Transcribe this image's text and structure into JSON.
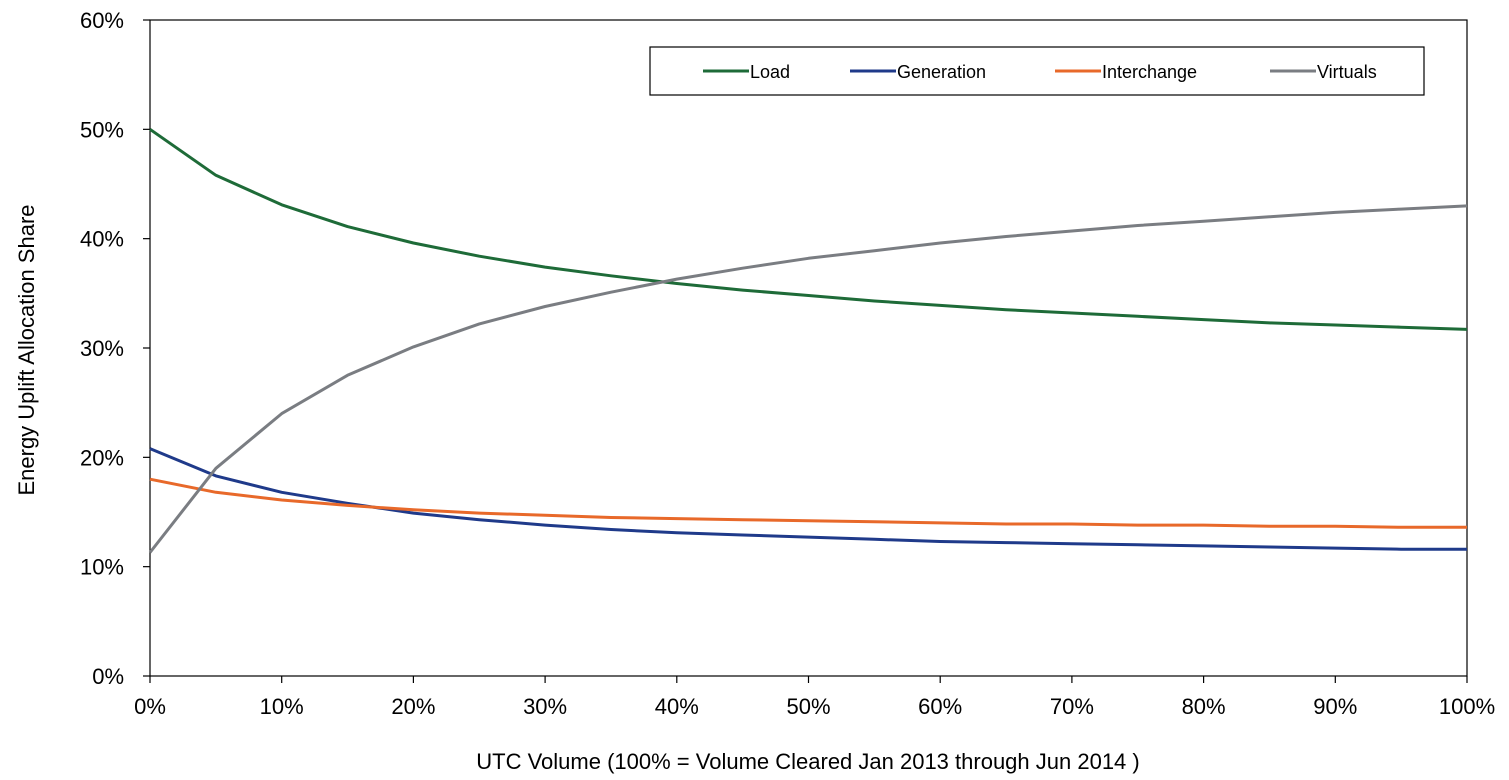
{
  "chart_data": {
    "type": "line",
    "title": "",
    "xlabel": "UTC Volume (100% = Volume Cleared Jan 2013 through Jun 2014 )",
    "ylabel": "Energy Uplift Allocation Share",
    "xlim": [
      0,
      100
    ],
    "ylim": [
      0,
      60
    ],
    "x_ticks": [
      "0%",
      "10%",
      "20%",
      "30%",
      "40%",
      "50%",
      "60%",
      "70%",
      "80%",
      "90%",
      "100%"
    ],
    "y_ticks": [
      "0%",
      "10%",
      "20%",
      "30%",
      "40%",
      "50%",
      "60%"
    ],
    "x_tick_values": [
      0,
      10,
      20,
      30,
      40,
      50,
      60,
      70,
      80,
      90,
      100
    ],
    "y_tick_values": [
      0,
      10,
      20,
      30,
      40,
      50,
      60
    ],
    "grid": false,
    "legend_position": "top-right",
    "x": [
      0,
      5,
      10,
      15,
      20,
      25,
      30,
      35,
      40,
      45,
      50,
      55,
      60,
      65,
      70,
      75,
      80,
      85,
      90,
      95,
      100
    ],
    "series": [
      {
        "name": "Load",
        "color": "#1e6b38",
        "values": [
          50.0,
          45.8,
          43.1,
          41.1,
          39.6,
          38.4,
          37.4,
          36.6,
          35.9,
          35.3,
          34.8,
          34.3,
          33.9,
          33.5,
          33.2,
          32.9,
          32.6,
          32.3,
          32.1,
          31.9,
          31.7
        ]
      },
      {
        "name": "Generation",
        "color": "#1f3a8a",
        "values": [
          20.8,
          18.3,
          16.8,
          15.8,
          14.9,
          14.3,
          13.8,
          13.4,
          13.1,
          12.9,
          12.7,
          12.5,
          12.3,
          12.2,
          12.1,
          12.0,
          11.9,
          11.8,
          11.7,
          11.6,
          11.6
        ]
      },
      {
        "name": "Interchange",
        "color": "#e8692a",
        "values": [
          18.0,
          16.8,
          16.1,
          15.6,
          15.2,
          14.9,
          14.7,
          14.5,
          14.4,
          14.3,
          14.2,
          14.1,
          14.0,
          13.9,
          13.9,
          13.8,
          13.8,
          13.7,
          13.7,
          13.6,
          13.6
        ]
      },
      {
        "name": "Virtuals",
        "color": "#7a7d82",
        "values": [
          11.3,
          19.0,
          24.0,
          27.5,
          30.1,
          32.2,
          33.8,
          35.1,
          36.3,
          37.3,
          38.2,
          38.9,
          39.6,
          40.2,
          40.7,
          41.2,
          41.6,
          42.0,
          42.4,
          42.7,
          43.0
        ]
      }
    ]
  }
}
